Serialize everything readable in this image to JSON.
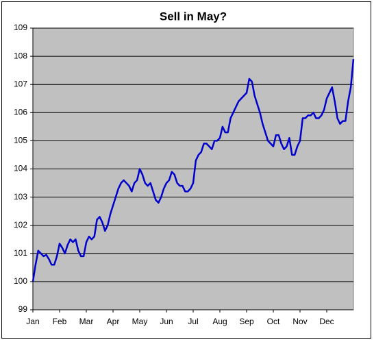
{
  "chart_data": {
    "type": "line",
    "title": "Sell in May?",
    "categories": [
      "Jan",
      null,
      null,
      null,
      null,
      null,
      null,
      null,
      null,
      null,
      "Feb",
      null,
      null,
      null,
      null,
      null,
      null,
      null,
      null,
      null,
      "Mar",
      null,
      null,
      null,
      null,
      null,
      null,
      null,
      null,
      null,
      "Apr",
      null,
      null,
      null,
      null,
      null,
      null,
      null,
      null,
      null,
      "May",
      null,
      null,
      null,
      null,
      null,
      null,
      null,
      null,
      null,
      "Jun",
      null,
      null,
      null,
      null,
      null,
      null,
      null,
      null,
      null,
      "Jul",
      null,
      null,
      null,
      null,
      null,
      null,
      null,
      null,
      null,
      "Aug",
      null,
      null,
      null,
      null,
      null,
      null,
      null,
      null,
      null,
      "Sep",
      null,
      null,
      null,
      null,
      null,
      null,
      null,
      null,
      null,
      "Oct",
      null,
      null,
      null,
      null,
      null,
      null,
      null,
      null,
      null,
      "Nov",
      null,
      null,
      null,
      null,
      null,
      null,
      null,
      null,
      null,
      "Dec",
      null,
      null,
      null,
      null,
      null,
      null,
      null,
      null,
      null,
      null
    ],
    "values": [
      100.0,
      100.6,
      101.1,
      101.0,
      100.9,
      100.95,
      100.8,
      100.6,
      100.6,
      100.9,
      101.35,
      101.2,
      101.0,
      101.3,
      101.5,
      101.4,
      101.5,
      101.1,
      100.9,
      100.9,
      101.4,
      101.6,
      101.5,
      101.6,
      102.2,
      102.3,
      102.1,
      101.8,
      102.0,
      102.4,
      102.7,
      103.0,
      103.3,
      103.5,
      103.6,
      103.5,
      103.4,
      103.2,
      103.5,
      103.6,
      104.0,
      103.8,
      103.5,
      103.4,
      103.5,
      103.2,
      102.9,
      102.8,
      103.0,
      103.3,
      103.5,
      103.6,
      103.9,
      103.8,
      103.5,
      103.4,
      103.4,
      103.2,
      103.2,
      103.3,
      103.5,
      104.3,
      104.5,
      104.6,
      104.9,
      104.9,
      104.8,
      104.7,
      105.0,
      105.0,
      105.1,
      105.5,
      105.3,
      105.3,
      105.8,
      106.0,
      106.2,
      106.4,
      106.5,
      106.6,
      106.7,
      107.2,
      107.1,
      106.6,
      106.3,
      106.0,
      105.6,
      105.3,
      105.0,
      104.9,
      104.8,
      105.2,
      105.2,
      104.9,
      104.7,
      104.8,
      105.1,
      104.5,
      104.5,
      104.8,
      105.0,
      105.8,
      105.8,
      105.9,
      105.9,
      106.0,
      105.8,
      105.8,
      105.9,
      106.1,
      106.5,
      106.7,
      106.9,
      106.4,
      105.8,
      105.6,
      105.7,
      105.7,
      106.4,
      106.9,
      107.9
    ],
    "color": "#0000cc",
    "ylim": [
      99,
      109
    ],
    "yticks": [
      99,
      100,
      101,
      102,
      103,
      104,
      105,
      106,
      107,
      108,
      109
    ],
    "grid": true
  }
}
